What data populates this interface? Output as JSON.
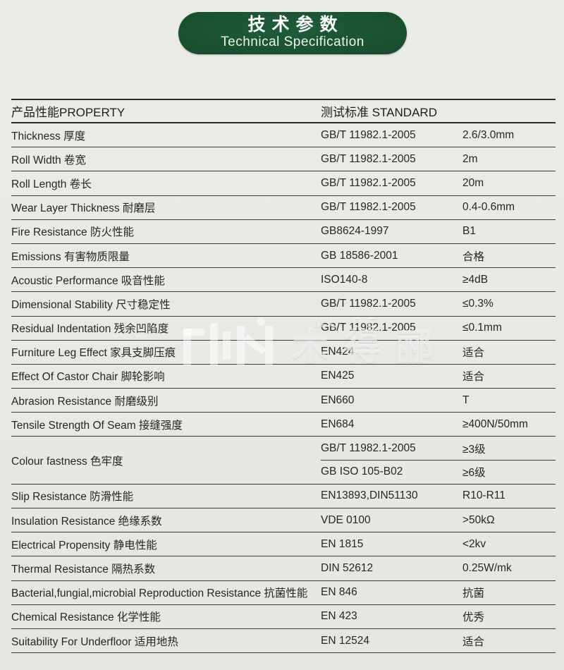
{
  "banner": {
    "title_zh": "技术参数",
    "title_en": "Technical Specification"
  },
  "watermark": {
    "small_text": "MU DE",
    "large_text": "木得郦"
  },
  "colors": {
    "banner_green": "#1a5331",
    "line": "#3a3a3a",
    "text": "#262626",
    "background": "#e9e8e4"
  },
  "table": {
    "header": {
      "property": "产品性能PROPERTY",
      "standard": "测试标准 STANDARD"
    },
    "rows": [
      {
        "property": "Thickness 厚度",
        "standard": "GB/T 11982.1-2005",
        "value": "2.6/3.0mm"
      },
      {
        "property": "Roll Width 卷宽",
        "standard": "GB/T 11982.1-2005",
        "value": "2m"
      },
      {
        "property": "Roll Length 卷长",
        "standard": "GB/T 11982.1-2005",
        "value": "20m"
      },
      {
        "property": "Wear Layer Thickness 耐磨层",
        "standard": "GB/T 11982.1-2005",
        "value": "0.4-0.6mm"
      },
      {
        "property": "Fire Resistance 防火性能",
        "standard": "GB8624-1997",
        "value": "B1"
      },
      {
        "property": "Emissions 有害物质限量",
        "standard": "GB 18586-2001",
        "value": "合格"
      },
      {
        "property": "Acoustic Performance 吸音性能",
        "standard": "ISO140-8",
        "value": "≥4dB"
      },
      {
        "property": "Dimensional Stability 尺寸稳定性",
        "standard": "GB/T 11982.1-2005",
        "value": "≤0.3%"
      },
      {
        "property": "Residual Indentation 残余凹陷度",
        "standard": "GB/T 11982.1-2005",
        "value": "≤0.1mm"
      },
      {
        "property": "Furniture Leg Effect 家具支脚压痕",
        "standard": "EN424",
        "value": "适合"
      },
      {
        "property": "Effect Of Castor Chair 脚轮影响",
        "standard": "EN425",
        "value": "适合"
      },
      {
        "property": "Abrasion Resistance 耐磨级别",
        "standard": "EN660",
        "value": "T"
      },
      {
        "property": "Tensile Strength Of Seam 接缝强度",
        "standard": "EN684",
        "value": "≥400N/50mm"
      },
      {
        "property": "Colour fastness 色牢度",
        "subrows": [
          {
            "standard": "GB/T 11982.1-2005",
            "value": "≥3级"
          },
          {
            "standard": "GB ISO 105-B02",
            "value": "≥6级"
          }
        ]
      },
      {
        "property": "Slip Resistance 防滑性能",
        "standard": "EN13893,DIN51130",
        "value": "R10-R11"
      },
      {
        "property": "Insulation Resistance 绝缘系数",
        "standard": "VDE 0100",
        "value": ">50kΩ"
      },
      {
        "property": "Electrical Propensity 静电性能",
        "standard": "EN 1815",
        "value": "<2kv"
      },
      {
        "property": "Thermal Resistance 隔热系数",
        "standard": "DIN 52612",
        "value": "0.25W/mk"
      },
      {
        "property": "Bacterial,fungial,microbial Reproduction Resistance 抗菌性能",
        "standard": "EN 846",
        "value": "抗菌"
      },
      {
        "property": "Chemical Resistance 化学性能",
        "standard": "EN 423",
        "value": "优秀"
      },
      {
        "property": "Suitability For Underfloor 适用地热",
        "standard": "EN 12524",
        "value": "适合"
      }
    ]
  }
}
